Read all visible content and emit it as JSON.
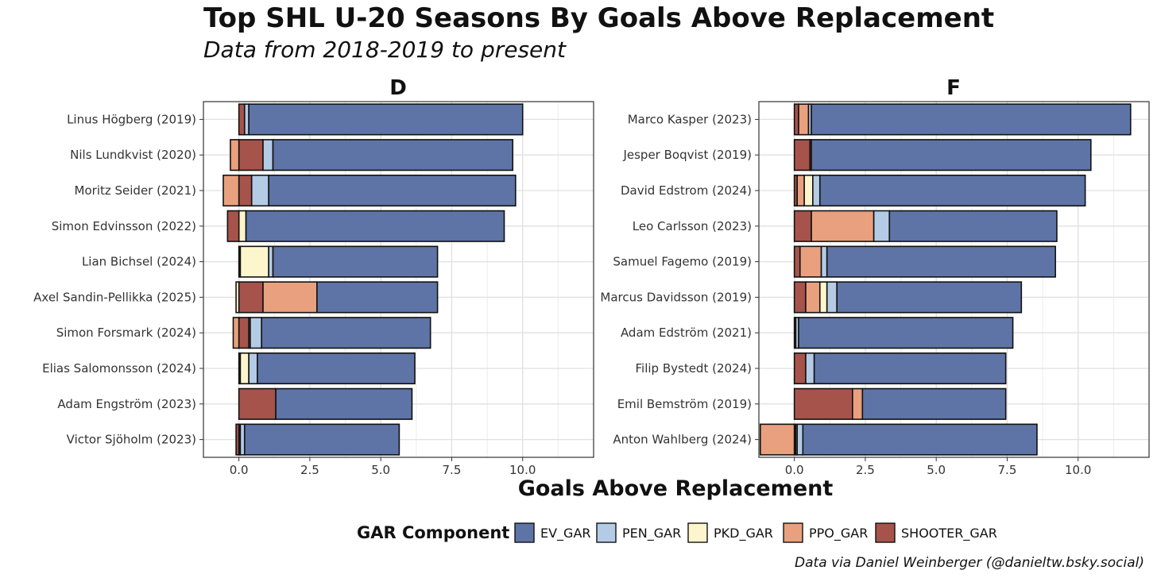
{
  "title": "Top SHL U-20 Seasons By Goals Above Replacement",
  "subtitle": "Data from 2018-2019 to present",
  "caption": "Data via Daniel Weinberger (@danieltw.bsky.social)",
  "chart_data": {
    "type": "bar",
    "orientation": "horizontal",
    "stacked": true,
    "xlabel": "Goals Above Replacement",
    "xlim": [
      -1.25,
      12.5
    ],
    "xticks": [
      0.0,
      2.5,
      5.0,
      7.5,
      10.0
    ],
    "xtick_labels": [
      "0.0",
      "2.5",
      "5.0",
      "7.5",
      "10.0"
    ],
    "grid": true,
    "legend": {
      "title": "GAR Component",
      "position": "bottom",
      "entries": [
        {
          "key": "EV_GAR",
          "color": "#5e74a6"
        },
        {
          "key": "PEN_GAR",
          "color": "#b4cbe6"
        },
        {
          "key": "PKD_GAR",
          "color": "#fdf6cc"
        },
        {
          "key": "PPO_GAR",
          "color": "#e9a07e"
        },
        {
          "key": "SHOOTER_GAR",
          "color": "#a6534c"
        }
      ]
    },
    "facets": [
      {
        "label": "D",
        "players": [
          {
            "name": "Linus Högberg (2019)",
            "EV_GAR": 9.65,
            "PEN_GAR": 0.15,
            "PKD_GAR": 0.0,
            "PPO_GAR": 0.0,
            "SHOOTER_GAR": 0.2
          },
          {
            "name": "Nils Lundkvist (2020)",
            "EV_GAR": 8.45,
            "PEN_GAR": 0.35,
            "PKD_GAR": 0.0,
            "PPO_GAR": -0.3,
            "SHOOTER_GAR": 0.85
          },
          {
            "name": "Moritz Seider (2021)",
            "EV_GAR": 8.7,
            "PEN_GAR": 0.6,
            "PKD_GAR": 0.0,
            "PPO_GAR": -0.55,
            "SHOOTER_GAR": 0.45
          },
          {
            "name": "Simon Edvinsson (2022)",
            "EV_GAR": 9.1,
            "PEN_GAR": 0.0,
            "PKD_GAR": 0.25,
            "PPO_GAR": 0.0,
            "SHOOTER_GAR": -0.4
          },
          {
            "name": "Lian Bichsel (2024)",
            "EV_GAR": 5.8,
            "PEN_GAR": 0.15,
            "PKD_GAR": 1.0,
            "PPO_GAR": 0.0,
            "SHOOTER_GAR": 0.05
          },
          {
            "name": "Axel Sandin-Pellikka (2025)",
            "EV_GAR": 4.25,
            "PEN_GAR": 0.0,
            "PKD_GAR": -0.1,
            "PPO_GAR": 1.9,
            "SHOOTER_GAR": 0.85
          },
          {
            "name": "Simon Forsmark (2024)",
            "EV_GAR": 5.95,
            "PEN_GAR": 0.4,
            "PKD_GAR": 0.05,
            "PPO_GAR": -0.2,
            "SHOOTER_GAR": 0.35
          },
          {
            "name": "Elias Salomonsson (2024)",
            "EV_GAR": 5.55,
            "PEN_GAR": 0.3,
            "PKD_GAR": 0.3,
            "PPO_GAR": 0.0,
            "SHOOTER_GAR": 0.05
          },
          {
            "name": "Adam Engström (2023)",
            "EV_GAR": 4.8,
            "PEN_GAR": 0.0,
            "PKD_GAR": 0.0,
            "PPO_GAR": 0.0,
            "SHOOTER_GAR": 1.3
          },
          {
            "name": "Victor Sjöholm (2023)",
            "EV_GAR": 5.45,
            "PEN_GAR": 0.15,
            "PKD_GAR": 0.05,
            "PPO_GAR": 0.0,
            "SHOOTER_GAR": -0.1
          }
        ]
      },
      {
        "label": "F",
        "players": [
          {
            "name": "Marco Kasper (2023)",
            "EV_GAR": 11.25,
            "PEN_GAR": 0.1,
            "PKD_GAR": 0.0,
            "PPO_GAR": 0.35,
            "SHOOTER_GAR": 0.15
          },
          {
            "name": "Jesper Boqvist (2019)",
            "EV_GAR": 9.85,
            "PEN_GAR": 0.0,
            "PKD_GAR": 0.0,
            "PPO_GAR": 0.05,
            "SHOOTER_GAR": 0.55
          },
          {
            "name": "David Edstrom (2024)",
            "EV_GAR": 9.35,
            "PEN_GAR": 0.25,
            "PKD_GAR": 0.3,
            "PPO_GAR": 0.25,
            "SHOOTER_GAR": 0.1
          },
          {
            "name": "Leo Carlsson (2023)",
            "EV_GAR": 5.9,
            "PEN_GAR": 0.55,
            "PKD_GAR": 0.0,
            "PPO_GAR": 2.2,
            "SHOOTER_GAR": 0.6
          },
          {
            "name": "Samuel Fagemo (2019)",
            "EV_GAR": 8.05,
            "PEN_GAR": 0.2,
            "PKD_GAR": 0.0,
            "PPO_GAR": 0.75,
            "SHOOTER_GAR": 0.2
          },
          {
            "name": "Marcus Davidsson (2019)",
            "EV_GAR": 6.5,
            "PEN_GAR": 0.35,
            "PKD_GAR": 0.25,
            "PPO_GAR": 0.5,
            "SHOOTER_GAR": 0.4
          },
          {
            "name": "Adam Edström (2021)",
            "EV_GAR": 7.55,
            "PEN_GAR": 0.1,
            "PKD_GAR": 0.0,
            "PPO_GAR": 0.0,
            "SHOOTER_GAR": 0.05
          },
          {
            "name": "Filip Bystedt (2024)",
            "EV_GAR": 6.75,
            "PEN_GAR": 0.3,
            "PKD_GAR": 0.0,
            "PPO_GAR": 0.0,
            "SHOOTER_GAR": 0.4
          },
          {
            "name": "Emil Bemström (2019)",
            "EV_GAR": 5.05,
            "PEN_GAR": 0.0,
            "PKD_GAR": 0.0,
            "PPO_GAR": 0.35,
            "SHOOTER_GAR": 2.05
          },
          {
            "name": "Anton Wahlberg (2024)",
            "EV_GAR": 8.25,
            "PEN_GAR": 0.2,
            "PKD_GAR": 0.05,
            "PPO_GAR": -1.2,
            "SHOOTER_GAR": 0.05
          }
        ]
      }
    ]
  }
}
